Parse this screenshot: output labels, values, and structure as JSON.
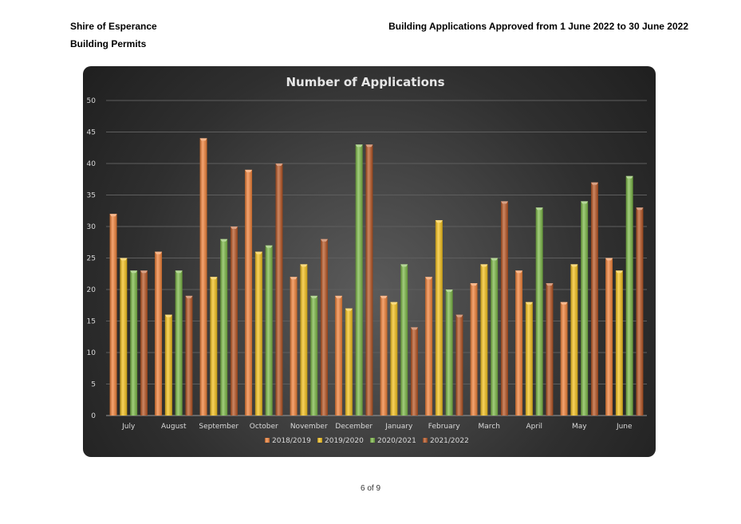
{
  "header": {
    "organization": "Shire of Esperance",
    "department": "Building Permits",
    "report_title": "Building Applications Approved from 1 June 2022 to 30 June 2022"
  },
  "footer": {
    "page": "6 of 9"
  },
  "colors": {
    "2018/2019": "#f07f34",
    "2019/2020": "#f5c018",
    "2020/2021": "#79b743",
    "2021/2022": "#b6521f"
  },
  "chart_data": {
    "type": "bar",
    "title": "Number of Applications",
    "xlabel": "",
    "ylabel": "",
    "ylim": [
      0,
      50
    ],
    "yticks": [
      0,
      5,
      10,
      15,
      20,
      25,
      30,
      35,
      40,
      45,
      50
    ],
    "grid": true,
    "legend": "bottom",
    "categories": [
      "July",
      "August",
      "September",
      "October",
      "November",
      "December",
      "January",
      "February",
      "March",
      "April",
      "May",
      "June"
    ],
    "series": [
      {
        "name": "2018/2019",
        "values": [
          32,
          26,
          44,
          39,
          22,
          19,
          19,
          22,
          21,
          23,
          18,
          25
        ]
      },
      {
        "name": "2019/2020",
        "values": [
          25,
          16,
          22,
          26,
          24,
          17,
          18,
          31,
          24,
          18,
          24,
          23
        ]
      },
      {
        "name": "2020/2021",
        "values": [
          23,
          23,
          28,
          27,
          19,
          43,
          24,
          20,
          25,
          33,
          34,
          38
        ]
      },
      {
        "name": "2021/2022",
        "values": [
          23,
          19,
          30,
          40,
          28,
          43,
          14,
          16,
          34,
          21,
          37,
          33
        ]
      }
    ]
  }
}
